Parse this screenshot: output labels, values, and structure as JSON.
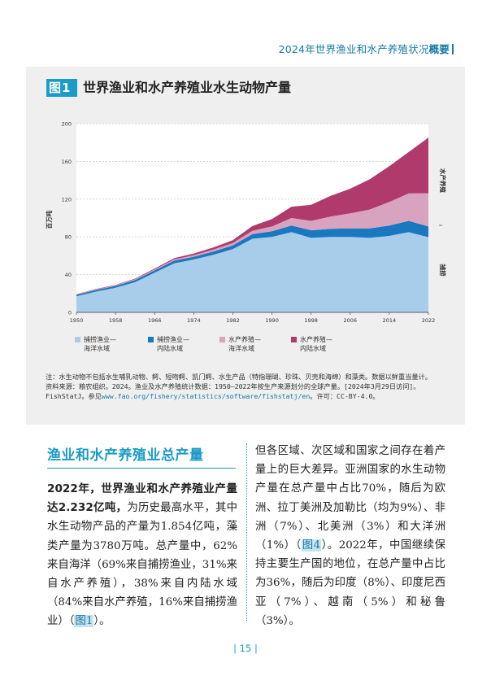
{
  "running_head": {
    "title": "2024年世界渔业和水产养殖状况",
    "emph": "概要"
  },
  "figure": {
    "badge": "图1",
    "title": "世界渔业和水产养殖业水生动物产量",
    "note_line1": "注：水生动物不包括水生哺乳动物、鳄、短吻鳄、凯门鳄、水生产品（特指珊瑚、珍珠、贝壳和海绵）和藻类。数据以鲜重当量计。",
    "note_line2": "资料来源：粮农组织。2024。渔业及水产养殖统计数据：1950–2022年按生产来源划分的全球产量。[2024年3月29日访问]。",
    "note_line3_a": "FishStatJ。参见",
    "note_url": "www.fao.org/fishery/statistics/software/fishstatj/en",
    "note_line3_b": "。许可：CC-BY-4.0。"
  },
  "chart_data": {
    "type": "area",
    "stacked": true,
    "title": "世界渔业和水产养殖业水生动物产量",
    "ylabel": "百万吨",
    "xlim": [
      1950,
      2022
    ],
    "ylim": [
      0,
      200
    ],
    "x_ticks": [
      1950,
      1958,
      1966,
      1974,
      1982,
      1990,
      1998,
      2006,
      2014,
      2022
    ],
    "y_ticks": [
      0,
      40,
      80,
      120,
      160,
      200
    ],
    "right_labels": {
      "aquaculture": "水产养殖",
      "capture": "捕捞"
    },
    "x": [
      1950,
      1954,
      1958,
      1962,
      1966,
      1970,
      1974,
      1978,
      1982,
      1986,
      1990,
      1994,
      1998,
      2002,
      2006,
      2010,
      2014,
      2018,
      2022
    ],
    "series": [
      {
        "name": "捕捞渔业—海洋水域",
        "color": "#a7cdea",
        "values": [
          17,
          22,
          26,
          32,
          42,
          52,
          56,
          61,
          67,
          78,
          80,
          85,
          79,
          80,
          80,
          79,
          81,
          85,
          79.7
        ]
      },
      {
        "name": "捕捞渔业—内陆水域",
        "color": "#1a78c0",
        "values": [
          1.5,
          1.8,
          2,
          2.3,
          2.5,
          2.8,
          3,
          3.5,
          4,
          5,
          6,
          7,
          8,
          8.5,
          9,
          10,
          11,
          12,
          11.3
        ]
      },
      {
        "name": "水产养殖—海洋水域",
        "color": "#d8a3bf",
        "values": [
          0.5,
          0.5,
          0.6,
          0.8,
          1,
          1.3,
          1.6,
          2,
          2.5,
          3.5,
          5,
          8,
          10,
          13,
          16,
          20,
          25,
          29,
          35.3
        ]
      },
      {
        "name": "水产养殖—内陆水域",
        "color": "#b13a6c",
        "values": [
          0.3,
          0.4,
          0.5,
          0.7,
          1,
          1.3,
          1.8,
          2.3,
          3,
          5,
          8,
          12,
          17,
          22,
          26,
          32,
          38,
          44,
          59
        ]
      }
    ]
  },
  "legend": [
    {
      "label": "捕捞渔业—\n海洋水域"
    },
    {
      "label": "捕捞渔业—\n内陆水域"
    },
    {
      "label": "水产养殖—\n海洋水域"
    },
    {
      "label": "水产养殖—\n内陆水域"
    }
  ],
  "section": {
    "title": "渔业和水产养殖业总产量",
    "lead": "2022年，世界渔业和水产养殖业产量达2.232亿吨，",
    "left_body": "为历史最高水平，其中水生动物产品的产量为1.854亿吨，藻类产量为3780万吨。总产量中，62%来自海洋（69%来自捕捞渔业，31%来自水产养殖），38%来自内陆水域（84%来自水产养殖，16%来自捕捞渔业）（",
    "left_xref": "图1",
    "left_tail": "）。",
    "right_body": "但各区域、次区域和国家之间存在着产量上的巨大差异。亚洲国家的水生动物产量在总产量中占比70%，随后为欧洲、拉丁美洲及加勒比（均为9%）、非洲（7%）、北美洲（3%）和大洋洲（1%）（",
    "right_xref": "图4",
    "right_tail": "）。2022年，中国继续保持主要生产国的地位，在总产量中占比为36%，随后为印度（8%）、印度尼西亚（7%）、越南（5%）和秘鲁（3%）。"
  },
  "page_number": "| 15 |"
}
